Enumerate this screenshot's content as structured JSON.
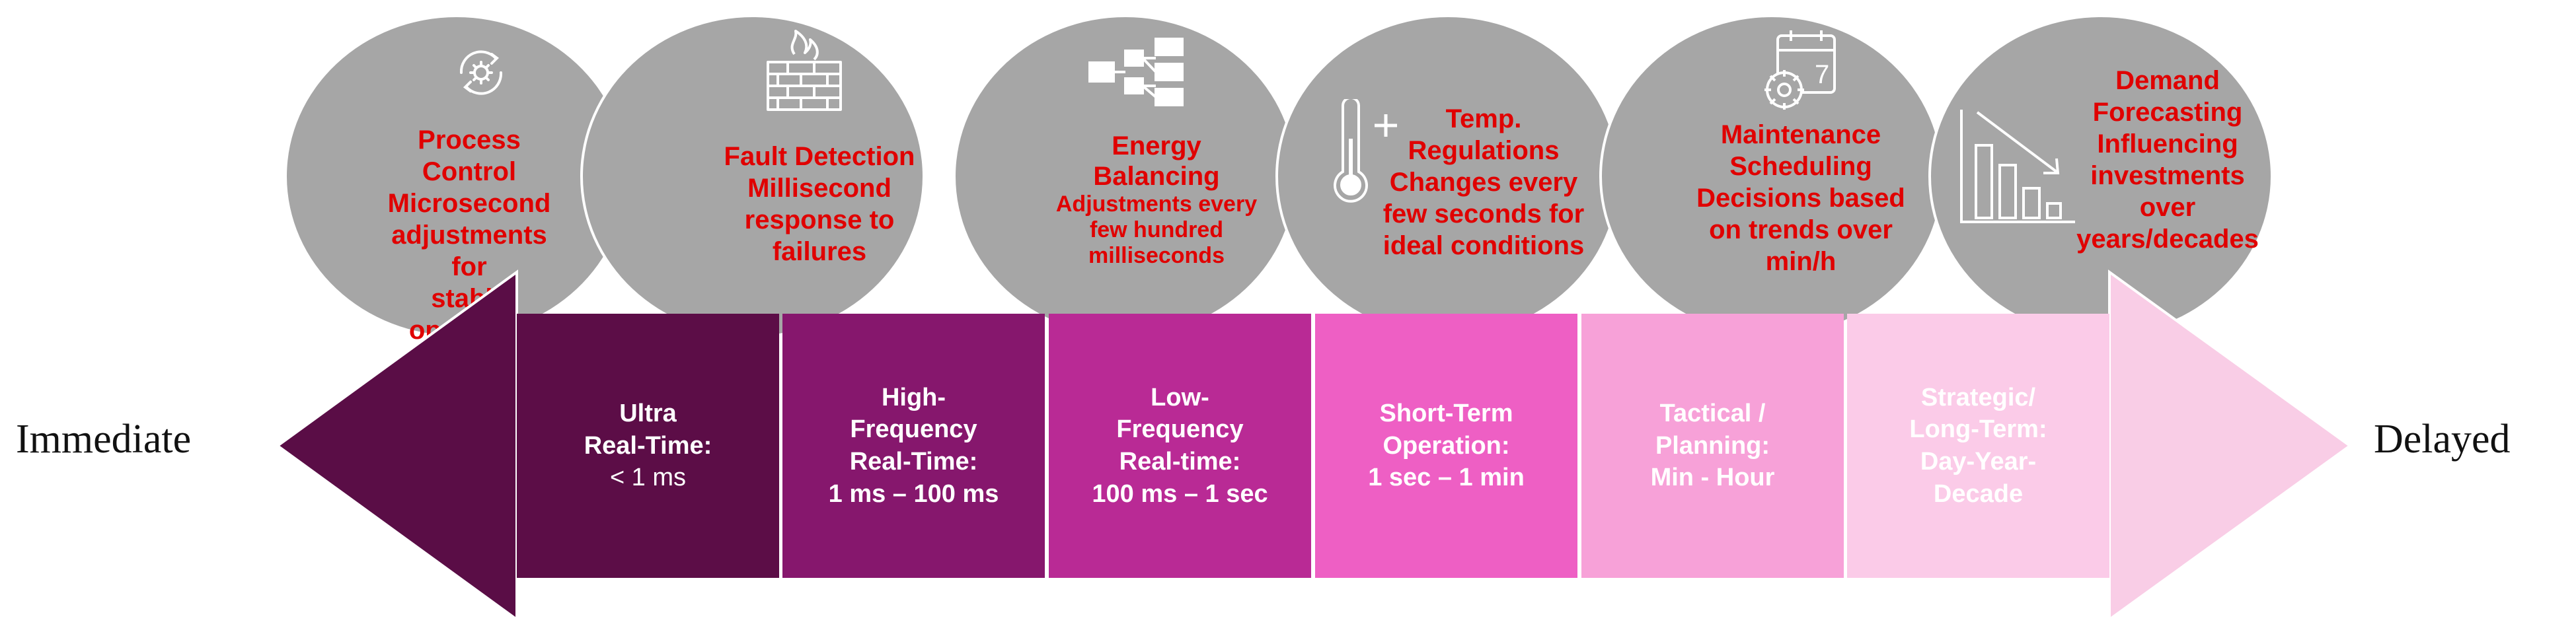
{
  "endpoints": {
    "left": "Immediate",
    "right": "Delayed"
  },
  "colors": {
    "bubble": "#a6a6a6",
    "bubble_text": "#e00000",
    "arrow_left_head": "#5a0d46",
    "arrow_right_head": "#f9cde6",
    "segments": [
      "#5c0d47",
      "#86176d",
      "#b92a95",
      "#ee5fc4",
      "#f7a1d8",
      "#fbcbe8"
    ]
  },
  "bubbles": [
    {
      "icon": "gear-cycle-icon",
      "lines": [
        "Process Control",
        "Microsecond",
        "adjustments for",
        "stable operation"
      ]
    },
    {
      "icon": "firewall-icon",
      "lines": [
        "Fault Detection",
        "Millisecond",
        "response to",
        "failures"
      ]
    },
    {
      "icon": "flow-diagram-icon",
      "lines": [
        "Energy",
        "Balancing",
        "Adjustments every",
        "few hundred",
        "milliseconds"
      ]
    },
    {
      "icon": "thermometer-plus-icon",
      "lines": [
        "Temp.",
        "Regulations",
        "Changes every",
        "few seconds for",
        "ideal conditions"
      ]
    },
    {
      "icon": "calendar-gear-icon",
      "lines": [
        "Maintenance",
        "Scheduling",
        "Decisions based",
        "on trends over",
        "min/h"
      ]
    },
    {
      "icon": "declining-chart-icon",
      "lines": [
        "Demand",
        "Forecasting",
        "Influencing",
        "investments",
        "over",
        "years/decades"
      ]
    }
  ],
  "segments": [
    {
      "lines": [
        "Ultra",
        "Real-Time:",
        "< 1 ms"
      ],
      "text_color": "#ffffff"
    },
    {
      "lines": [
        "High-",
        "Frequency",
        "Real-Time:",
        "1 ms – 100 ms"
      ],
      "text_color": "#ffffff"
    },
    {
      "lines": [
        "Low-",
        "Frequency",
        "Real-time:",
        "100 ms – 1 sec"
      ],
      "text_color": "#ffffff"
    },
    {
      "lines": [
        "Short-Term",
        "Operation:",
        "1 sec – 1 min"
      ],
      "text_color": "#ffffff"
    },
    {
      "lines": [
        "Tactical /",
        "Planning:",
        "Min - Hour"
      ],
      "text_color": "#ffffff"
    },
    {
      "lines": [
        "Strategic/",
        "Long-Term:",
        "Day-Year-",
        "Decade"
      ],
      "text_color": "#ffffff"
    }
  ]
}
